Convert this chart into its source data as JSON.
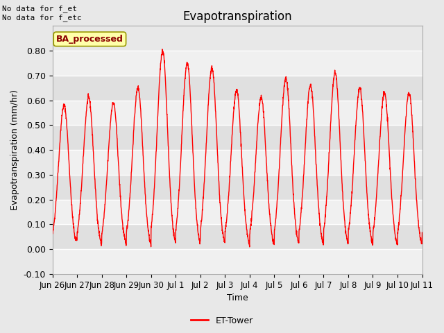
{
  "title": "Evapotranspiration",
  "ylabel": "Evapotranspiration (mm/hr)",
  "xlabel": "Time",
  "ylim": [
    -0.1,
    0.9
  ],
  "yticks": [
    -0.1,
    0.0,
    0.1,
    0.2,
    0.3,
    0.4,
    0.5,
    0.6,
    0.7,
    0.8
  ],
  "line_color": "red",
  "line_width": 1.0,
  "legend_label": "ET-Tower",
  "legend_line_color": "red",
  "annotation_text": "No data for f_et\nNo data for f_etc",
  "watermark_text": "BA_processed",
  "background_color": "#e8e8e8",
  "plot_bg_color": "#e8e8e8",
  "grid_color": "white",
  "tick_labels": [
    "Jun 26",
    "Jun 27",
    "Jun 28",
    "Jun 29",
    "Jun 30",
    "Jul 1",
    "Jul 2",
    "Jul 3",
    "Jul 4",
    "Jul 5",
    "Jul 6",
    "Jul 7",
    "Jul 8",
    "Jul 9",
    "Jul 10",
    "Jul 11"
  ],
  "tick_positions": [
    0,
    1,
    2,
    3,
    4,
    5,
    6,
    7,
    8,
    9,
    10,
    11,
    12,
    13,
    14,
    15
  ],
  "num_days": 15,
  "daily_peaks": [
    0.58,
    0.61,
    0.59,
    0.65,
    0.8,
    0.75,
    0.73,
    0.64,
    0.61,
    0.69,
    0.66,
    0.71,
    0.65,
    0.63,
    0.63
  ],
  "daily_mins": [
    0.04,
    0.015,
    0.02,
    -0.005,
    -0.005,
    -0.005,
    0.0,
    -0.005,
    -0.005,
    -0.005,
    -0.005,
    -0.005,
    -0.005,
    -0.005,
    0.01
  ],
  "band_colors": [
    "#f0f0f0",
    "#e0e0e0"
  ],
  "figsize": [
    6.4,
    4.8
  ],
  "dpi": 100
}
